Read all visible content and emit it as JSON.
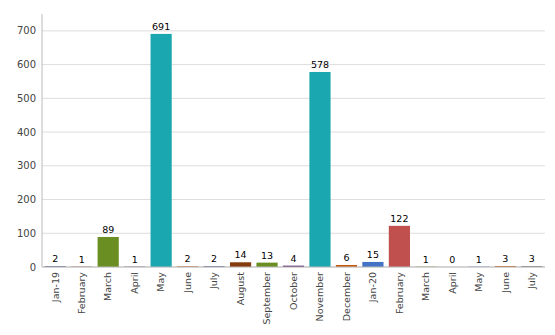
{
  "chart_data": {
    "type": "bar",
    "categories": [
      "Jan-19",
      "February",
      "March",
      "April",
      "May",
      "June",
      "July",
      "August",
      "September",
      "October",
      "November",
      "December",
      "Jan-20",
      "February",
      "March",
      "April",
      "May",
      "June",
      "July"
    ],
    "values": [
      2,
      1,
      89,
      1,
      691,
      2,
      2,
      14,
      13,
      4,
      578,
      6,
      15,
      122,
      1,
      0,
      1,
      3,
      3
    ],
    "colors": [
      "#1F3864",
      "#843C0C",
      "#6B8E23",
      "#5B2C6F",
      "#1AA7B0",
      "#C55A11",
      "#1F3864",
      "#843C0C",
      "#6B8E23",
      "#5B2C6F",
      "#1AA7B0",
      "#C55A11",
      "#4472C4",
      "#C0504D",
      "#6B8E23",
      "#5B2C6F",
      "#4472C4",
      "#C55A11",
      "#808080"
    ],
    "ylim": [
      0,
      750
    ],
    "yticks": [
      0,
      100,
      200,
      300,
      400,
      500,
      600,
      700
    ],
    "grid": true,
    "data_labels": true
  }
}
